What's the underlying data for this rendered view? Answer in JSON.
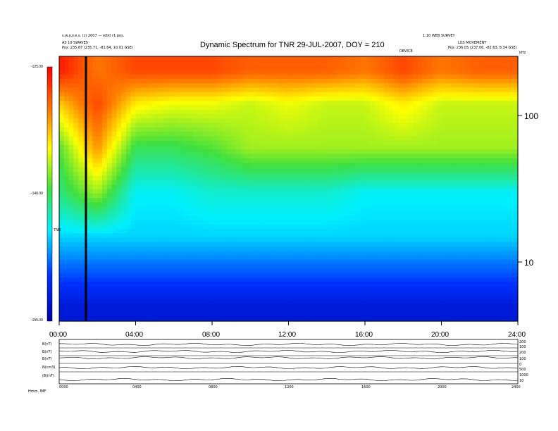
{
  "chart_data": {
    "type": "heatmap",
    "title": "Dynamic Spectrum for TNR 29-JUL-2007, DOY = 210",
    "header_left_line1": "s.w.a.v.e.s. (c) 2007 — orbit r1 pos.",
    "header_left_line2": "AS 19 SWAVES",
    "header_left_line3": "Pos:  235.87 (235.71, -81.64, 10.01 GSE)",
    "header_right_line1": "1:10 WEB SURVEY",
    "header_right_line2": "LOS MOVEMENT",
    "header_right_line3": "Pos:  236.05 (237.06, -82.63, 8.34 GSE)",
    "center_small_label": "DEVICE",
    "x_ticks": [
      "00:00",
      "04:00",
      "08:00",
      "12:00",
      "16:00",
      "20:00",
      "24:00"
    ],
    "y_right_ticks": [
      "100",
      "10"
    ],
    "y_right_unit": "kHz",
    "colorbar_ticks": [
      "-125.00",
      "-140.00",
      "-155.00"
    ],
    "colorbar_label": "TNR",
    "colorbar_range": [
      -155,
      -125
    ],
    "freq_range_khz": [
      4,
      250
    ],
    "log_scale_y": true,
    "vertical_marker_hour": 1.4,
    "rows_description": "frequency bands from high (top) to low (bottom)",
    "rows_hours": [
      0,
      2,
      4,
      6,
      8,
      10,
      12,
      14,
      16,
      18,
      20,
      22,
      24
    ],
    "rows": [
      {
        "freq_khz": 200,
        "values_db": [
          -126,
          -130,
          -128,
          -128,
          -128,
          -129,
          -129,
          -129,
          -130,
          -128,
          -130,
          -129,
          -129
        ]
      },
      {
        "freq_khz": 120,
        "values_db": [
          -133,
          -128,
          -134,
          -135,
          -135,
          -136,
          -135,
          -136,
          -136,
          -134,
          -136,
          -136,
          -136
        ]
      },
      {
        "freq_khz": 60,
        "values_db": [
          -139,
          -131,
          -140,
          -140,
          -139,
          -137,
          -137,
          -137,
          -137,
          -137,
          -137,
          -137,
          -137
        ]
      },
      {
        "freq_khz": 30,
        "values_db": [
          -141,
          -137,
          -144,
          -144,
          -143,
          -143,
          -143,
          -143,
          -144,
          -144,
          -144,
          -144,
          -144
        ]
      },
      {
        "freq_khz": 15,
        "values_db": [
          -145,
          -145,
          -145,
          -145,
          -145,
          -145,
          -145,
          -145,
          -145,
          -145,
          -145,
          -145,
          -145
        ]
      },
      {
        "freq_khz": 8,
        "values_db": [
          -149,
          -149,
          -149,
          -149,
          -149,
          -149,
          -149,
          -149,
          -149,
          -149,
          -149,
          -149,
          -149
        ]
      },
      {
        "freq_khz": 5,
        "values_db": [
          -152,
          -152,
          -152,
          -152,
          -152,
          -152,
          -152,
          -152,
          -152,
          -152,
          -152,
          -152,
          -152
        ]
      }
    ],
    "lower_panel_labels": [
      "B(nT)",
      "B(nT)",
      "B(nT)",
      "N(cm3)",
      "|B|(nT)"
    ],
    "lower_panel_right_ticks": [
      "200",
      "100",
      "200",
      "100",
      "0",
      "500",
      "1000",
      "10"
    ],
    "lower_x_ticks": [
      "0000",
      "0400",
      "0800",
      "1200",
      "1600",
      "2000",
      "2400"
    ],
    "footer_label": "Hmm.   IMF",
    "colors": {
      "dark": "#000000",
      "navy": "#0000a8",
      "blue": "#0030ff",
      "cyan": "#00f0ff",
      "green": "#40e040",
      "yellow": "#ffff00",
      "orange": "#ff8000",
      "red": "#ff0000"
    }
  }
}
